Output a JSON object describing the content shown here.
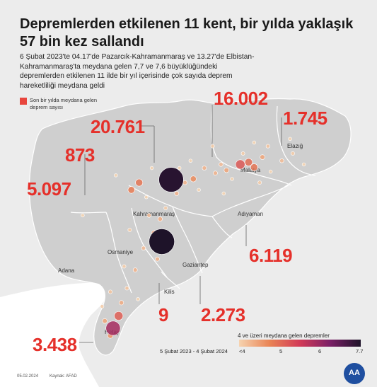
{
  "title": "Depremlerden etkilenen 11 kent, bir yılda yaklaşık 57 bin kez sallandı",
  "subtitle": "6 Şubat 2023'te 04.17'de Pazarcık-Kahramanmaraş ve 13.27'de Elbistan-Kahramanmaraş'ta meydana gelen 7,7 ve 7,6 büyüklüğündeki depremlerden etkilenen 11 ilde bir yıl içerisinde çok sayıda deprem hareketliliği meydana geldi",
  "legend": {
    "label": "Son bir yılda meydana gelen deprem sayısı",
    "color": "#e8463d"
  },
  "counts": {
    "malatya": "16.002",
    "elazig": "1.745",
    "kahramanmaras": "20.761",
    "osmaniye": "873",
    "adana": "5.097",
    "adiyaman": "6.119",
    "kilis": "9",
    "gaziantep": "2.273",
    "hatay": "3.438"
  },
  "cities": {
    "elazig": "Elazığ",
    "malatya": "Malatya",
    "kahramanmaras": "Kahramanmaraş",
    "adiyaman": "Adıyaman",
    "osmaniye": "Osmaniye",
    "adana": "Adana",
    "gaziantep": "Gaziantep",
    "kilis": "Kilis",
    "hatay": "Hatay"
  },
  "magnitude_scale": {
    "title": "4 ve üzeri meydana gelen depremler",
    "date_range": "5 Şubat 2023 - 4 Şubat 2024",
    "ticks": [
      "<4",
      "5",
      "6",
      "7.7"
    ],
    "colors": [
      "#f6d3b0",
      "#e98455",
      "#d23a57",
      "#7a1f66",
      "#1e1329"
    ]
  },
  "footer": {
    "date": "05.02.2024",
    "source": "Kaynak: AFAD",
    "logo": "AA"
  },
  "quakes": [
    {
      "lon": 37.03,
      "lat": 37.24,
      "mag": 7.7
    },
    {
      "lon": 37.2,
      "lat": 38.09,
      "mag": 7.6
    },
    {
      "lon": 36.15,
      "lat": 36.05,
      "mag": 6.4
    },
    {
      "lon": 38.45,
      "lat": 38.3,
      "mag": 5.6
    },
    {
      "lon": 38.6,
      "lat": 38.33,
      "mag": 5.3
    },
    {
      "lon": 38.7,
      "lat": 38.26,
      "mag": 5.2
    },
    {
      "lon": 36.62,
      "lat": 38.05,
      "mag": 5.2
    },
    {
      "lon": 36.48,
      "lat": 37.95,
      "mag": 5.1
    },
    {
      "lon": 37.6,
      "lat": 38.1,
      "mag": 4.9
    },
    {
      "lon": 36.9,
      "lat": 37.35,
      "mag": 5.0
    },
    {
      "lon": 36.25,
      "lat": 36.22,
      "mag": 5.5
    },
    {
      "lon": 36.1,
      "lat": 35.95,
      "mag": 4.8
    },
    {
      "lon": 38.2,
      "lat": 38.22,
      "mag": 4.6
    },
    {
      "lon": 37.0,
      "lat": 37.55,
      "mag": 4.5
    },
    {
      "lon": 36.7,
      "lat": 37.15,
      "mag": 4.3
    },
    {
      "lon": 38.0,
      "lat": 38.18,
      "mag": 4.4
    },
    {
      "lon": 39.2,
      "lat": 38.35,
      "mag": 4.3
    },
    {
      "lon": 36.3,
      "lat": 36.4,
      "mag": 4.5
    },
    {
      "lon": 36.55,
      "lat": 36.85,
      "mag": 4.4
    },
    {
      "lon": 37.45,
      "lat": 38.05,
      "mag": 4.4
    },
    {
      "lon": 38.85,
      "lat": 38.4,
      "mag": 4.6
    },
    {
      "lon": 36.8,
      "lat": 37.6,
      "mag": 4.3
    },
    {
      "lon": 37.3,
      "lat": 37.9,
      "mag": 4.4
    },
    {
      "lon": 36.4,
      "lat": 36.6,
      "mag": 4.2
    },
    {
      "lon": 37.8,
      "lat": 38.25,
      "mag": 4.4
    },
    {
      "lon": 38.1,
      "lat": 38.3,
      "mag": 4.3
    },
    {
      "lon": 36.0,
      "lat": 36.15,
      "mag": 4.6
    },
    {
      "lon": 36.95,
      "lat": 37.0,
      "mag": 4.4
    },
    {
      "lon": 38.95,
      "lat": 38.55,
      "mag": 4.2
    },
    {
      "lon": 39.4,
      "lat": 38.45,
      "mag": 4.1
    },
    {
      "lon": 36.2,
      "lat": 38.15,
      "mag": 4.0
    },
    {
      "lon": 36.75,
      "lat": 37.85,
      "mag": 4.0
    },
    {
      "lon": 37.1,
      "lat": 37.7,
      "mag": 4.1
    },
    {
      "lon": 37.7,
      "lat": 37.95,
      "mag": 4.0
    },
    {
      "lon": 38.3,
      "lat": 38.1,
      "mag": 4.0
    },
    {
      "lon": 38.5,
      "lat": 38.45,
      "mag": 4.1
    },
    {
      "lon": 39.0,
      "lat": 38.2,
      "mag": 4.0
    },
    {
      "lon": 36.35,
      "lat": 36.9,
      "mag": 4.1
    },
    {
      "lon": 36.6,
      "lat": 36.45,
      "mag": 4.0
    },
    {
      "lon": 35.95,
      "lat": 36.35,
      "mag": 4.1
    },
    {
      "lon": 36.45,
      "lat": 37.4,
      "mag": 4.1
    },
    {
      "lon": 37.35,
      "lat": 38.25,
      "mag": 4.0
    },
    {
      "lon": 38.7,
      "lat": 38.6,
      "mag": 4.0
    },
    {
      "lon": 37.95,
      "lat": 38.55,
      "mag": 4.1
    },
    {
      "lon": 37.55,
      "lat": 38.35,
      "mag": 4.0
    },
    {
      "lon": 36.85,
      "lat": 38.25,
      "mag": 4.0
    },
    {
      "lon": 35.6,
      "lat": 37.6,
      "mag": 4.0
    },
    {
      "lon": 36.1,
      "lat": 36.55,
      "mag": 4.2
    },
    {
      "lon": 39.6,
      "lat": 38.3,
      "mag": 4.0
    },
    {
      "lon": 38.15,
      "lat": 37.9,
      "mag": 4.0
    },
    {
      "lon": 38.8,
      "lat": 38.05,
      "mag": 4.1
    },
    {
      "lon": 39.35,
      "lat": 38.65,
      "mag": 4.0
    }
  ]
}
